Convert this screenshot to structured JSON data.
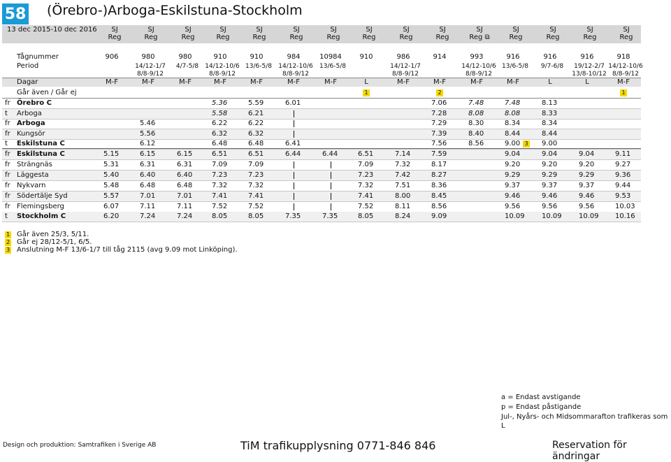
{
  "header": {
    "number": "58",
    "title": "(Örebro-)Arboga-Eskilstuna-Stockholm",
    "validity": "13 dec 2015-10 dec 2016"
  },
  "operators": [
    "SJ",
    "SJ",
    "SJ",
    "SJ",
    "SJ",
    "SJ",
    "SJ",
    "SJ",
    "SJ",
    "SJ",
    "SJ",
    "SJ",
    "SJ",
    "SJ",
    "SJ"
  ],
  "services": [
    "Reg",
    "Reg",
    "Reg",
    "Reg",
    "Reg",
    "Reg",
    "Reg",
    "Reg",
    "Reg",
    "Reg",
    "Reg ⧉",
    "Reg",
    "Reg",
    "Reg",
    "Reg"
  ],
  "meta_labels": {
    "train": "Tågnummer",
    "period": "Period",
    "days": "Dagar",
    "also": "Går även / Går ej"
  },
  "train_numbers": [
    "906",
    "980",
    "980",
    "910",
    "910",
    "984",
    "10984",
    "910",
    "986",
    "914",
    "993",
    "916",
    "916",
    "916",
    "918"
  ],
  "periods": [
    [
      "",
      ""
    ],
    [
      "14/12-1/7",
      "8/8-9/12"
    ],
    [
      "4/7-5/8",
      ""
    ],
    [
      "14/12-10/6",
      "8/8-9/12"
    ],
    [
      "13/6-5/8",
      ""
    ],
    [
      "14/12-10/6",
      "8/8-9/12"
    ],
    [
      "13/6-5/8",
      ""
    ],
    [
      "",
      ""
    ],
    [
      "14/12-1/7",
      "8/8-9/12"
    ],
    [
      "",
      ""
    ],
    [
      "14/12-10/6",
      "8/8-9/12"
    ],
    [
      "13/6-5/8",
      ""
    ],
    [
      "9/7-6/8",
      ""
    ],
    [
      "19/12-2/7",
      "13/8-10/12"
    ],
    [
      "14/12-10/6",
      "8/8-9/12"
    ]
  ],
  "days": [
    "M-F",
    "M-F",
    "M-F",
    "M-F",
    "M-F",
    "M-F",
    "M-F",
    "L",
    "M-F",
    "M-F",
    "M-F",
    "M-F",
    "L",
    "L",
    "M-F"
  ],
  "also_notes": [
    "",
    "",
    "",
    "",
    "",
    "",
    "",
    "1",
    "",
    "2",
    "",
    "",
    "",
    "",
    "1"
  ],
  "stops": [
    {
      "mark": "fr",
      "name": "Örebro C",
      "bold": true,
      "cells": [
        "",
        "",
        "",
        "5.36",
        "5.59",
        "6.01",
        "",
        "",
        "",
        "7.06",
        "7.48",
        "7.48",
        "8.13",
        "",
        ""
      ],
      "italic": [
        3,
        10,
        11
      ]
    },
    {
      "mark": "t",
      "name": "Arboga",
      "bold": false,
      "cells": [
        "",
        "",
        "",
        "5.58",
        "6.21",
        "|",
        "",
        "",
        "",
        "7.28",
        "8.08",
        "8.08",
        "8.33",
        "",
        ""
      ],
      "italic": [
        3,
        10,
        11
      ]
    },
    {
      "mark": "fr",
      "name": "Arboga",
      "bold": true,
      "cells": [
        "",
        "5.46",
        "",
        "6.22",
        "6.22",
        "|",
        "",
        "",
        "",
        "7.29",
        "8.30",
        "8.34",
        "8.34",
        "",
        ""
      ],
      "italic": []
    },
    {
      "mark": "fr",
      "name": "Kungsör",
      "bold": false,
      "cells": [
        "",
        "5.56",
        "",
        "6.32",
        "6.32",
        "|",
        "",
        "",
        "",
        "7.39",
        "8.40",
        "8.44",
        "8.44",
        "",
        ""
      ],
      "italic": []
    },
    {
      "mark": "t",
      "name": "Eskilstuna C",
      "bold": true,
      "cells": [
        "",
        "6.12",
        "",
        "6.48",
        "6.48",
        "6.41",
        "",
        "",
        "",
        "7.56",
        "8.56",
        "9.00",
        "9.00",
        "",
        ""
      ],
      "italic": []
    },
    {
      "mark": "fr",
      "name": "Eskilstuna C",
      "bold": true,
      "cells": [
        "5.15",
        "6.15",
        "6.15",
        "6.51",
        "6.51",
        "6.44",
        "6.44",
        "6.51",
        "7.14",
        "7.59",
        "",
        "9.04",
        "9.04",
        "9.04",
        "9.11"
      ],
      "italic": []
    },
    {
      "mark": "fr",
      "name": "Strängnäs",
      "bold": false,
      "cells": [
        "5.31",
        "6.31",
        "6.31",
        "7.09",
        "7.09",
        "|",
        "|",
        "7.09",
        "7.32",
        "8.17",
        "",
        "9.20",
        "9.20",
        "9.20",
        "9.27"
      ],
      "italic": []
    },
    {
      "mark": "fr",
      "name": "Läggesta",
      "bold": false,
      "cells": [
        "5.40",
        "6.40",
        "6.40",
        "7.23",
        "7.23",
        "|",
        "|",
        "7.23",
        "7.42",
        "8.27",
        "",
        "9.29",
        "9.29",
        "9.29",
        "9.36"
      ],
      "italic": []
    },
    {
      "mark": "fr",
      "name": "Nykvarn",
      "bold": false,
      "cells": [
        "5.48",
        "6.48",
        "6.48",
        "7.32",
        "7.32",
        "|",
        "|",
        "7.32",
        "7.51",
        "8.36",
        "",
        "9.37",
        "9.37",
        "9.37",
        "9.44"
      ],
      "italic": []
    },
    {
      "mark": "fr",
      "name": "Södertälje Syd",
      "bold": false,
      "cells": [
        "5.57",
        "7.01",
        "7.01",
        "7.41",
        "7.41",
        "|",
        "|",
        "7.41",
        "8.00",
        "8.45",
        "",
        "9.46",
        "9.46",
        "9.46",
        "9.53"
      ],
      "italic": []
    },
    {
      "mark": "fr",
      "name": "Flemingsberg",
      "bold": false,
      "cells": [
        "6.07",
        "7.11",
        "7.11",
        "7.52",
        "7.52",
        "|",
        "|",
        "7.52",
        "8.11",
        "8.56",
        "",
        "9.56",
        "9.56",
        "9.56",
        "10.03"
      ],
      "italic": []
    },
    {
      "mark": "t",
      "name": "Stockholm C",
      "bold": true,
      "cells": [
        "6.20",
        "7.24",
        "7.24",
        "8.05",
        "8.05",
        "7.35",
        "7.35",
        "8.05",
        "8.24",
        "9.09",
        "",
        "10.09",
        "10.09",
        "10.09",
        "10.16"
      ],
      "italic": []
    }
  ],
  "connection_note_marker": "3",
  "footnotes": [
    {
      "n": "1",
      "text": "Går även 25/3, 5/11."
    },
    {
      "n": "2",
      "text": "Går ej 28/12-5/1, 6/5."
    },
    {
      "n": "3",
      "text": "Anslutning M-F 13/6-1/7 till tåg 2115 (avg 9.09 mot Linköping)."
    }
  ],
  "legend": [
    "a = Endast avstigande",
    "p = Endast påstigande",
    "Jul-, Nyårs- och Midsommarafton trafikeras som L"
  ],
  "footer": {
    "credit": "Design och produktion: Samtrafiken i Sverige AB",
    "phone": "TiM trafikupplysning 0771-846 846",
    "reservation": "Reservation för ändringar"
  },
  "colors": {
    "badge": "#1a9ad6",
    "header_bg": "#d6d6d6",
    "note_yellow": "#f5d800"
  }
}
